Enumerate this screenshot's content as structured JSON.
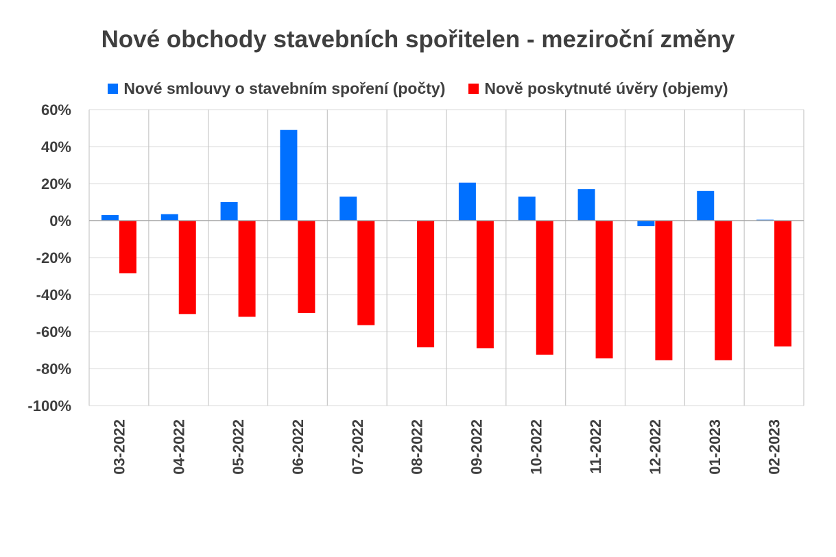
{
  "chart_data": {
    "type": "bar",
    "title": "Nové obchody stavebních spořitelen - meziroční změny",
    "categories": [
      "03-2022",
      "04-2022",
      "05-2022",
      "06-2022",
      "07-2022",
      "08-2022",
      "09-2022",
      "10-2022",
      "11-2022",
      "12-2022",
      "01-2023",
      "02-2023"
    ],
    "series": [
      {
        "name": "Nové smlouvy o stavebním spoření (počty)",
        "color": "#0070ff",
        "values": [
          3,
          3.5,
          10,
          49,
          13,
          0,
          20.5,
          13,
          17,
          -3,
          16,
          0.5
        ]
      },
      {
        "name": "Nově poskytnuté úvěry (objemy)",
        "color": "#ff0000",
        "values": [
          -28.5,
          -50.5,
          -52,
          -50,
          -56.5,
          -68.5,
          -69,
          -72.5,
          -74.5,
          -75.5,
          -75.5,
          -68
        ]
      }
    ],
    "ylim": [
      -100,
      60
    ],
    "yticks": [
      60,
      40,
      20,
      0,
      -20,
      -40,
      -60,
      -80,
      -100
    ],
    "ytick_labels": [
      "60%",
      "40%",
      "20%",
      "0%",
      "-20%",
      "-40%",
      "-60%",
      "-80%",
      "-100%"
    ],
    "grid": true,
    "legend_position": "top"
  }
}
